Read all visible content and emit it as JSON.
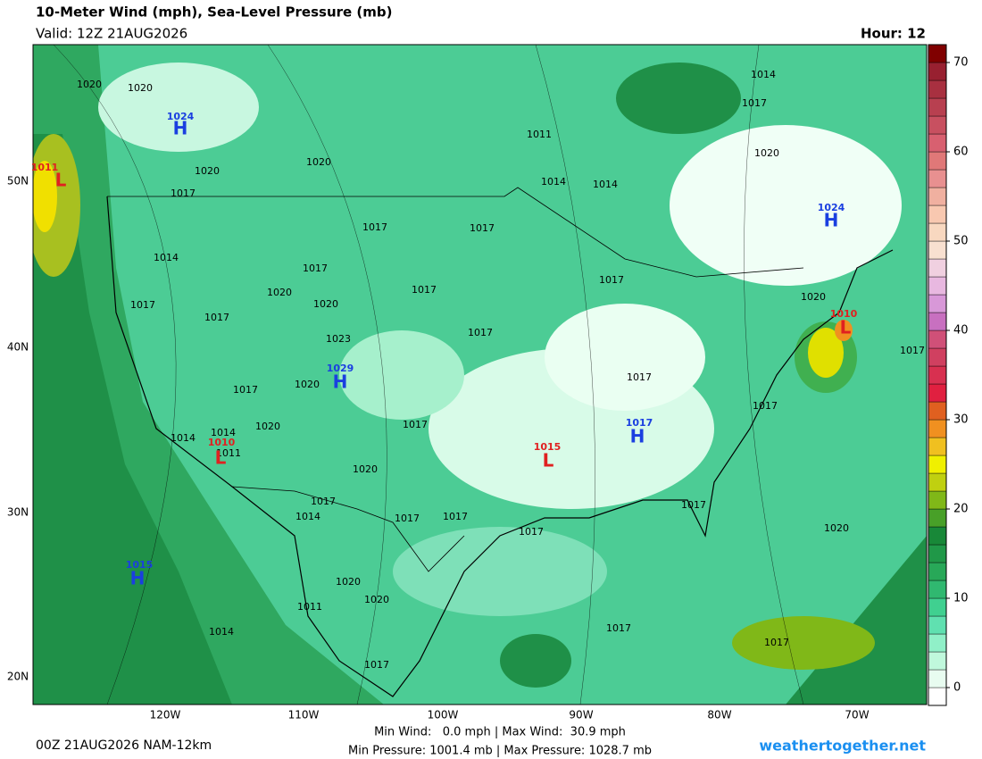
{
  "header": {
    "title": "10-Meter Wind (mph), Sea-Level Pressure (mb)",
    "valid": "Valid: 12Z 21AUG2026",
    "hour": "Hour: 12"
  },
  "map": {
    "lon_labels": [
      "120W",
      "110W",
      "100W",
      "90W",
      "80W",
      "70W"
    ],
    "lat_labels": [
      "50N",
      "40N",
      "30N",
      "20N"
    ],
    "isobar_labels": [
      1020,
      1020,
      1020,
      1017,
      1014,
      1017,
      1017,
      1020,
      1017,
      1020,
      1017,
      1017,
      1023,
      1020,
      1017,
      1020,
      1014,
      1014,
      1011,
      1020,
      1017,
      1014,
      1017,
      1017,
      1017,
      1020,
      1020,
      1011,
      1014,
      1017,
      1017,
      1017,
      1017,
      1017,
      1020,
      1017,
      1017,
      1017,
      1014,
      1014,
      1011,
      1017,
      1017,
      1014,
      1020,
      1020,
      1017,
      1017,
      1020
    ],
    "centers": [
      {
        "type": "H",
        "value": 1024,
        "color": "#1a3fe0"
      },
      {
        "type": "L",
        "value": 1011,
        "color": "#e02020"
      },
      {
        "type": "H",
        "value": 1024,
        "color": "#1a3fe0"
      },
      {
        "type": "H",
        "value": 1029,
        "color": "#1a3fe0"
      },
      {
        "type": "L",
        "value": 1010,
        "color": "#e02020"
      },
      {
        "type": "L",
        "value": 1015,
        "color": "#e02020"
      },
      {
        "type": "H",
        "value": 1017,
        "color": "#1a3fe0"
      },
      {
        "type": "L",
        "value": 1010,
        "color": "#e02020"
      },
      {
        "type": "H",
        "value": 1015,
        "color": "#1a3fe0"
      }
    ]
  },
  "colorbar": {
    "lim": [
      -2,
      72
    ],
    "ticks": [
      0,
      10,
      20,
      30,
      40,
      50,
      60,
      70
    ],
    "colors": [
      "#ffffff",
      "#e8fcf0",
      "#c0f8dc",
      "#90f0c8",
      "#60e0b0",
      "#40d090",
      "#30b870",
      "#28a858",
      "#209848",
      "#188838",
      "#48a028",
      "#80b818",
      "#c0d010",
      "#f0f000",
      "#f0c020",
      "#f09020",
      "#e06020",
      "#e02040",
      "#d83050",
      "#d04060",
      "#d05078",
      "#c870c0",
      "#d898d8",
      "#e8b8e0",
      "#f0d0e0",
      "#f8e0d0",
      "#f8d8c0",
      "#f8c8b0",
      "#f0b0a0",
      "#e89090",
      "#e07878",
      "#d86070",
      "#c85060",
      "#b84050",
      "#a83040",
      "#982030",
      "#800000"
    ]
  },
  "footer": {
    "run": "00Z 21AUG2026 NAM-12km",
    "wind": "Min Wind:   0.0 mph | Max Wind:  30.9 mph",
    "pressure": "Min Pressure: 1001.4 mb | Max Pressure: 1028.7 mb",
    "site": "weathertogether.net"
  }
}
